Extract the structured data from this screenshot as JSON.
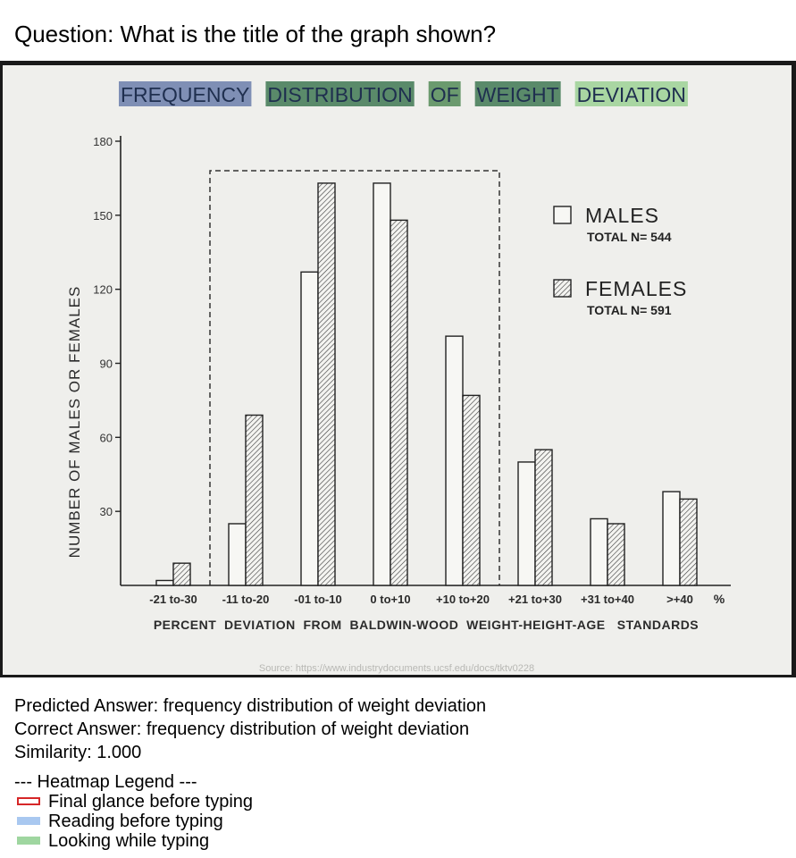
{
  "question": "Question: What is the title of the graph shown?",
  "source_text": "Source: https://www.industrydocuments.ucsf.edu/docs/tktv0228",
  "chart_data": {
    "type": "bar",
    "title_words": [
      {
        "text": "FREQUENCY",
        "highlight": "#7f8fb5"
      },
      {
        "text": "DISTRIBUTION",
        "highlight": "#5a8a6a"
      },
      {
        "text": "OF",
        "highlight": "#6b9a6e"
      },
      {
        "text": "WEIGHT",
        "highlight": "#5a8a6a"
      },
      {
        "text": "DEVIATION",
        "highlight": "#a9d6a2"
      }
    ],
    "categories": [
      "-21 to-30",
      "-11 to-20",
      "-01 to-10",
      "0 to+10",
      "+10 to+20",
      "+21 to+30",
      "+31 to+40",
      ">+40"
    ],
    "percent_symbol": "%",
    "series": [
      {
        "name": "MALES",
        "total": "TOTAL  N= 544",
        "pattern": "open",
        "values": [
          2,
          25,
          127,
          163,
          101,
          50,
          27,
          38
        ]
      },
      {
        "name": "FEMALES",
        "total": "TOTAL  N= 591",
        "pattern": "hatched",
        "values": [
          9,
          69,
          163,
          148,
          77,
          55,
          25,
          35
        ]
      }
    ],
    "ylabel": "NUMBER OF MALES OR FEMALES",
    "xlabel": "PERCENT  DEVIATION  FROM  BALDWIN-WOOD  WEIGHT-HEIGHT-AGE   STANDARDS",
    "yticks": [
      30,
      60,
      90,
      120,
      150,
      180
    ],
    "ylim": [
      0,
      180
    ],
    "grid": false,
    "legend_position": "top-right"
  },
  "answers": {
    "predicted": "Predicted Answer: frequency distribution of weight deviation",
    "correct": "Correct Answer: frequency distribution of weight deviation",
    "similarity": "Similarity: 1.000"
  },
  "heatmap_legend": {
    "title": "--- Heatmap Legend ---",
    "items": [
      {
        "label": "Final glance before typing",
        "style": "outline",
        "color": "#d62728"
      },
      {
        "label": "Reading before typing",
        "style": "fill",
        "color": "#a9c8f0"
      },
      {
        "label": "Looking while typing",
        "style": "fill",
        "color": "#9fd6a0"
      }
    ]
  }
}
